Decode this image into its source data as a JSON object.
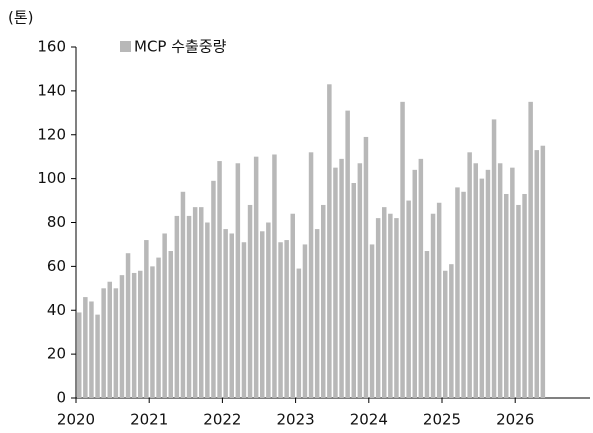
{
  "chart_data": {
    "type": "bar",
    "unit_label": "(톤)",
    "categories": [
      "2020",
      null,
      null,
      null,
      null,
      null,
      null,
      null,
      null,
      null,
      null,
      null,
      "2021",
      null,
      null,
      null,
      null,
      null,
      null,
      null,
      null,
      null,
      null,
      null,
      "2022",
      null,
      null,
      null,
      null,
      null,
      null,
      null,
      null,
      null,
      null,
      null,
      "2023",
      null,
      null,
      null,
      null,
      null,
      null,
      null,
      null,
      null,
      null,
      null,
      "2024",
      null,
      null,
      null,
      null,
      null,
      null,
      null,
      null,
      null,
      null,
      null,
      "2025",
      null,
      null,
      null,
      null,
      null,
      null,
      null,
      null,
      null,
      null,
      null,
      "2026",
      null,
      null,
      null,
      null
    ],
    "series": [
      {
        "name": "MCP 수출중량",
        "color": "#b8b8b8",
        "values": [
          39,
          46,
          44,
          38,
          50,
          53,
          50,
          56,
          66,
          57,
          58,
          72,
          60,
          64,
          75,
          67,
          83,
          94,
          83,
          87,
          87,
          80,
          99,
          108,
          77,
          75,
          107,
          71,
          88,
          110,
          76,
          80,
          111,
          71,
          72,
          84,
          59,
          70,
          112,
          77,
          88,
          143,
          105,
          109,
          131,
          98,
          107,
          119,
          70,
          82,
          87,
          84,
          82,
          135,
          90,
          104,
          109,
          67,
          84,
          89,
          58,
          61,
          96,
          94,
          112,
          107,
          100,
          104,
          127,
          107,
          93,
          105,
          88,
          93,
          135,
          113,
          115
        ]
      }
    ],
    "ylim": [
      0,
      160
    ],
    "yticks": [
      0,
      20,
      40,
      60,
      80,
      100,
      120,
      140,
      160
    ],
    "legend": "top-left"
  }
}
